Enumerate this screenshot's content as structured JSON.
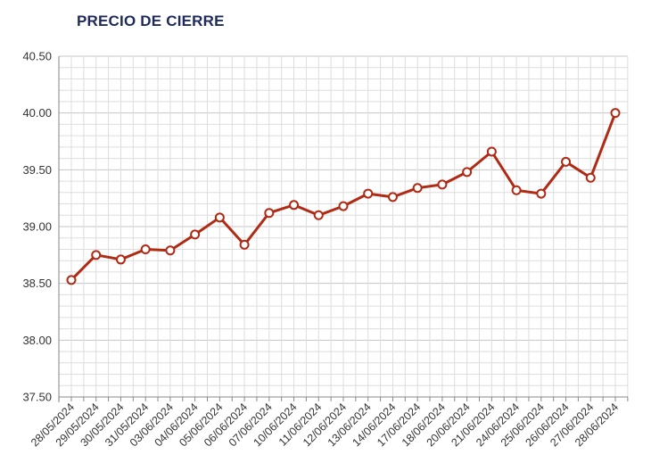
{
  "chart_data": {
    "type": "line",
    "title": "PRECIO DE CIERRE",
    "xlabel": "",
    "ylabel": "",
    "categories": [
      "28/05/2024",
      "29/05/2024",
      "30/05/2024",
      "31/05/2024",
      "03/06/2024",
      "04/06/2024",
      "05/06/2024",
      "06/06/2024",
      "07/06/2024",
      "10/06/2024",
      "11/06/2024",
      "12/06/2024",
      "13/06/2024",
      "14/06/2024",
      "17/06/2024",
      "18/06/2024",
      "20/06/2024",
      "21/06/2024",
      "24/06/2024",
      "25/06/2024",
      "26/06/2024",
      "27/06/2024",
      "28/06/2024"
    ],
    "series": [
      {
        "values": [
          38.53,
          38.75,
          38.71,
          38.8,
          38.79,
          38.93,
          39.08,
          38.84,
          39.12,
          39.19,
          39.1,
          39.18,
          39.29,
          39.26,
          39.34,
          39.37,
          39.48,
          39.66,
          39.32,
          39.29,
          39.57,
          39.43,
          40.0
        ]
      }
    ],
    "ylim": [
      37.5,
      40.5
    ],
    "yticks": [
      "37.50",
      "38.00",
      "38.50",
      "39.00",
      "39.50",
      "40.00",
      "40.50"
    ],
    "grid": true,
    "colors": {
      "line": "#b02a14",
      "marker_fill": "#ffffff",
      "grid": "#cccccc",
      "axis": "#888888",
      "title": "#1f2a5c"
    }
  }
}
